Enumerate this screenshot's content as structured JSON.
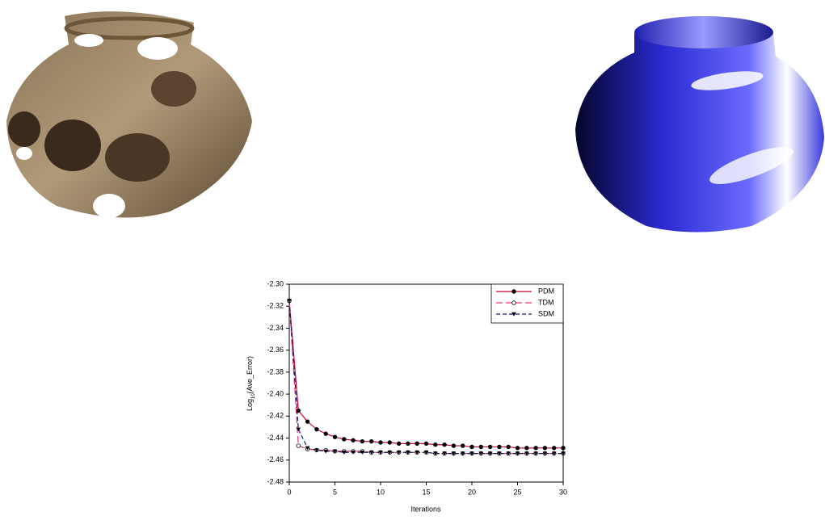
{
  "chart_data": {
    "type": "line",
    "xlabel": "Iterations",
    "ylabel": {
      "base": "Log",
      "sub": "10",
      "rest": "(Ave_Error)"
    },
    "x": [
      0,
      1,
      2,
      3,
      4,
      5,
      6,
      7,
      8,
      9,
      10,
      11,
      12,
      13,
      14,
      15,
      16,
      17,
      18,
      19,
      20,
      21,
      22,
      23,
      24,
      25,
      26,
      27,
      28,
      29,
      30
    ],
    "xlim": [
      0,
      30
    ],
    "xticks": [
      0,
      5,
      10,
      15,
      20,
      25,
      30
    ],
    "ylim": [
      -2.48,
      -2.3
    ],
    "yticks": [
      {
        "value": -2.48,
        "label": "-2.48"
      },
      {
        "value": -2.46,
        "label": "-2.46"
      },
      {
        "value": -2.44,
        "label": "-2.44"
      },
      {
        "value": -2.42,
        "label": "-2.42"
      },
      {
        "value": -2.4,
        "label": "-2.40"
      },
      {
        "value": -2.38,
        "label": "-2.38"
      },
      {
        "value": -2.36,
        "label": "-2.36"
      },
      {
        "value": -2.34,
        "label": "-2.34"
      },
      {
        "value": -2.32,
        "label": "-2.32"
      },
      {
        "value": -2.3,
        "label": "-2.30"
      }
    ],
    "legend": "top-right",
    "series": [
      {
        "name": "PDM",
        "color": "#cc0033",
        "dash": "none",
        "marker": "filled-circle",
        "values": [
          -2.315,
          -2.415,
          -2.425,
          -2.432,
          -2.436,
          -2.439,
          -2.441,
          -2.442,
          -2.443,
          -2.443,
          -2.444,
          -2.444,
          -2.445,
          -2.445,
          -2.445,
          -2.445,
          -2.446,
          -2.446,
          -2.447,
          -2.447,
          -2.448,
          -2.448,
          -2.448,
          -2.448,
          -2.448,
          -2.449,
          -2.449,
          -2.449,
          -2.449,
          -2.449,
          -2.449
        ]
      },
      {
        "name": "TDM",
        "color": "#e0307a",
        "dash": "8 4",
        "marker": "open-circle",
        "values": [
          -2.315,
          -2.447,
          -2.45,
          -2.451,
          -2.451,
          -2.452,
          -2.452,
          -2.452,
          -2.452,
          -2.453,
          -2.453,
          -2.453,
          -2.453,
          -2.453,
          -2.453,
          -2.453,
          -2.454,
          -2.454,
          -2.454,
          -2.454,
          -2.454,
          -2.454,
          -2.454,
          -2.454,
          -2.454,
          -2.454,
          -2.454,
          -2.454,
          -2.454,
          -2.454,
          -2.454
        ]
      },
      {
        "name": "SDM",
        "color": "#1a1a6e",
        "dash": "5 3",
        "marker": "triangle-down",
        "values": [
          -2.315,
          -2.432,
          -2.449,
          -2.451,
          -2.452,
          -2.452,
          -2.453,
          -2.453,
          -2.453,
          -2.453,
          -2.453,
          -2.453,
          -2.453,
          -2.453,
          -2.453,
          -2.453,
          -2.454,
          -2.454,
          -2.454,
          -2.454,
          -2.454,
          -2.454,
          -2.454,
          -2.454,
          -2.454,
          -2.454,
          -2.454,
          -2.454,
          -2.454,
          -2.454,
          -2.454
        ]
      }
    ]
  }
}
